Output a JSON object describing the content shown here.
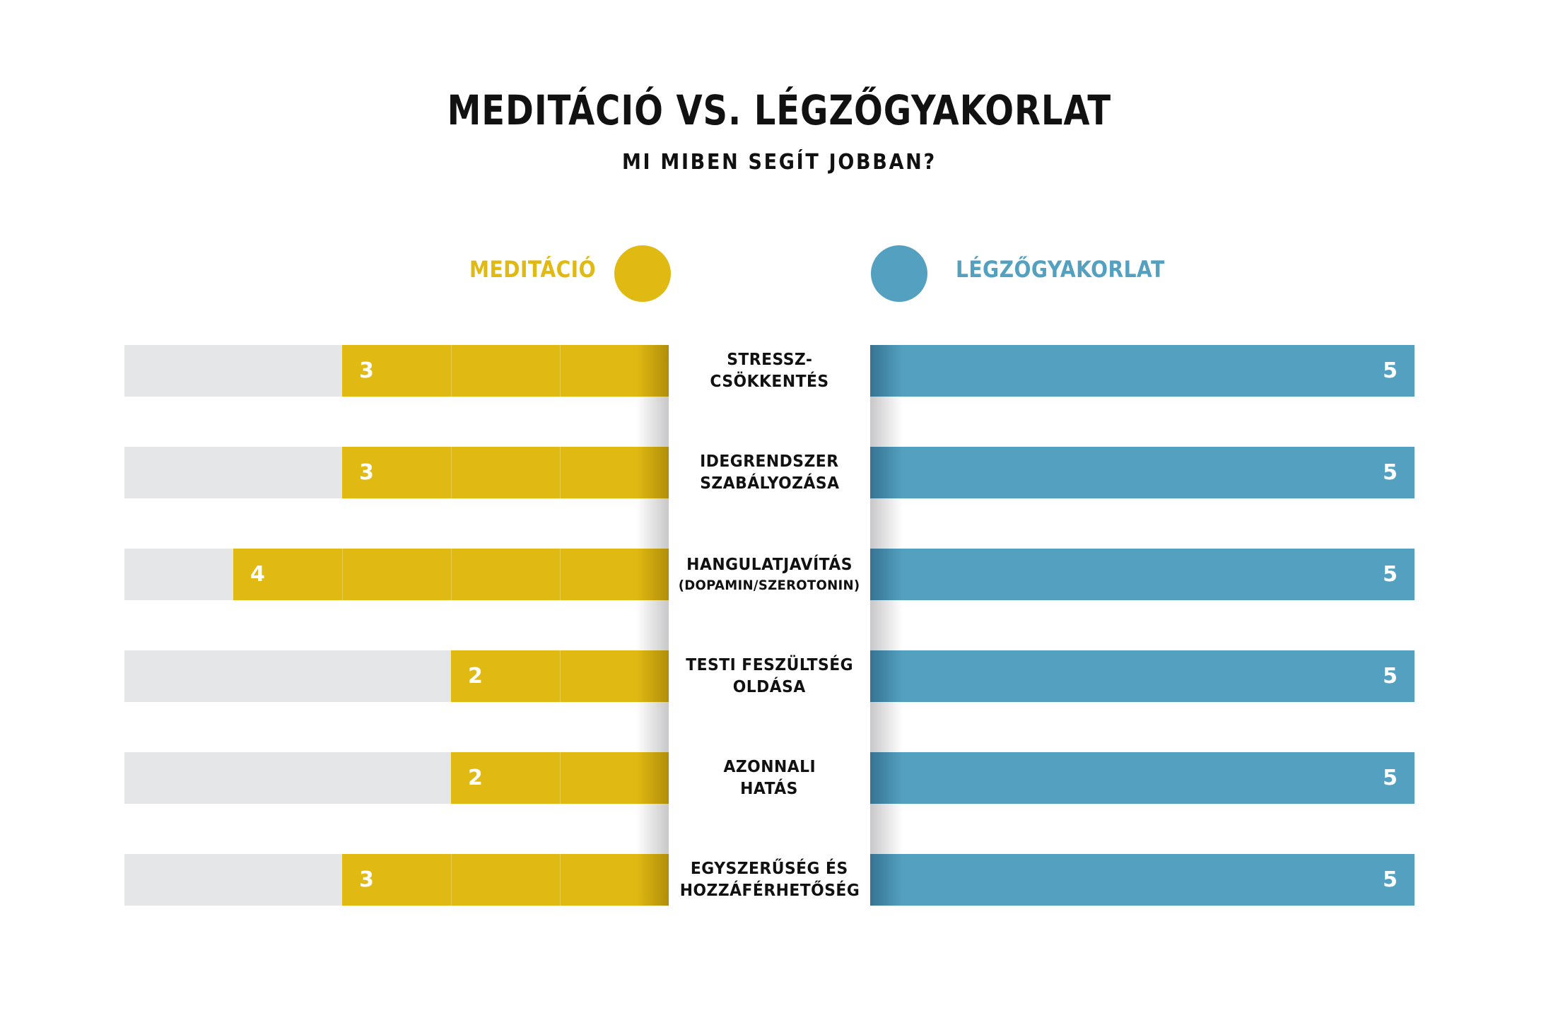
{
  "header": {
    "title": "MEDITÁCIÓ VS. LÉGZŐGYAKORLAT",
    "subtitle": "MI MIBEN SEGÍT JOBBAN?"
  },
  "colors": {
    "meditation": "#e0b912",
    "breathing": "#53a0c0",
    "track": "#e5e6e8"
  },
  "chart_data": {
    "type": "bar",
    "orientation": "horizontal-diverging",
    "title": "MEDITÁCIÓ VS. LÉGZŐGYAKORLAT",
    "subtitle": "MI MIBEN SEGÍT JOBBAN?",
    "legend": [
      "MEDITÁCIÓ",
      "LÉGZŐGYAKORLAT"
    ],
    "legend_position": "top",
    "xlim": [
      0,
      5
    ],
    "categories": [
      {
        "line1": "STRESSZ-",
        "line2": "CSÖKKENTÉS",
        "small2": false
      },
      {
        "line1": "IDEGRENDSZER",
        "line2": "SZABÁLYOZÁSA",
        "small2": false
      },
      {
        "line1": "HANGULATJAVÍTÁS",
        "line2": "(DOPAMIN/SZEROTONIN)",
        "small2": true
      },
      {
        "line1": "TESTI FESZÜLTSÉG",
        "line2": "OLDÁSA",
        "small2": false
      },
      {
        "line1": "AZONNALI",
        "line2": "HATÁS",
        "small2": false
      },
      {
        "line1": "EGYSZERŰSÉG ÉS",
        "line2": "HOZZÁFÉRHETŐSÉG",
        "small2": false
      }
    ],
    "series": [
      {
        "name": "MEDITÁCIÓ",
        "values": [
          3,
          3,
          4,
          2,
          2,
          3
        ]
      },
      {
        "name": "LÉGZŐGYAKORLAT",
        "values": [
          5,
          5,
          5,
          5,
          5,
          5
        ]
      }
    ]
  }
}
